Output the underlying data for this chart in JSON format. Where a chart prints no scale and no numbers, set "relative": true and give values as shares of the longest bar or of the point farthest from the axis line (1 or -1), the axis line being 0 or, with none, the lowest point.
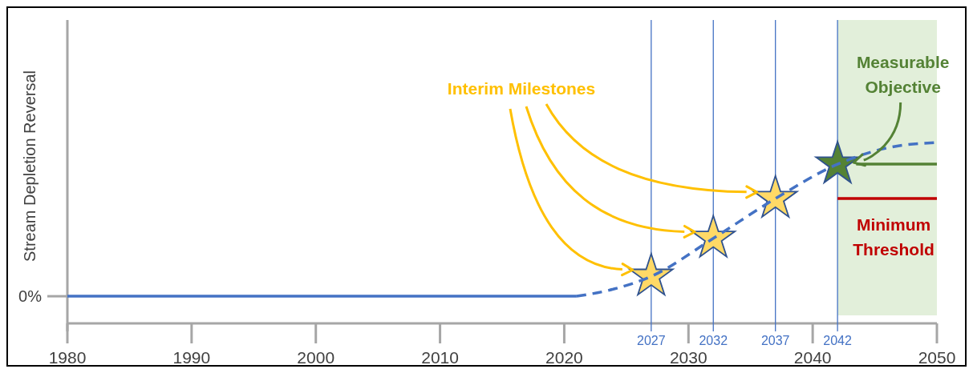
{
  "chart_data": {
    "type": "line",
    "relative": true,
    "ylabel": "Stream Depletion Reversal",
    "xlim": [
      1980,
      2050
    ],
    "xticks": [
      1980,
      1990,
      2000,
      2010,
      2020,
      2030,
      2040,
      2050
    ],
    "grid": false,
    "legend": false,
    "series": [
      {
        "type": "line",
        "color": "#4472c4",
        "line_style": "solid",
        "x": [
          1980,
          2021
        ],
        "values": [
          0.15,
          0.15
        ]
      },
      {
        "type": "line",
        "color": "#4472c4",
        "line_style": "dashed",
        "x": [
          2021,
          2024,
          2027,
          2032,
          2037,
          2042,
          2046,
          2050
        ],
        "values": [
          0.15,
          0.19,
          0.26,
          0.47,
          0.69,
          0.88,
          0.97,
          1
        ]
      },
      {
        "type": "line",
        "name": "Measurable Objective",
        "color": "#548235",
        "line_style": "solid",
        "x": [
          2043.5,
          2050
        ],
        "values": [
          0.88,
          0.88
        ]
      },
      {
        "type": "line",
        "name": "Minimum Threshold",
        "color": "#c00000",
        "line_style": "solid",
        "x": [
          2042,
          2050
        ],
        "values": [
          0.69,
          0.69
        ]
      },
      {
        "type": "scatter",
        "marker": "star",
        "colors": [
          "#ffd966",
          "#ffd966",
          "#ffd966",
          "#548235"
        ],
        "x": [
          2027,
          2032,
          2037,
          2042
        ],
        "values": [
          0.26,
          0.47,
          0.69,
          0.88
        ]
      }
    ],
    "ref_lines": [
      {
        "axis": "x",
        "value": 2027,
        "label": "2027",
        "color": "#4472c4"
      },
      {
        "axis": "x",
        "value": 2032,
        "label": "2032",
        "color": "#4472c4"
      },
      {
        "axis": "x",
        "value": 2037,
        "label": "2037",
        "color": "#4472c4"
      },
      {
        "axis": "x",
        "value": 2042,
        "label": "2042",
        "color": "#4472c4"
      }
    ],
    "bands": [
      {
        "axis": "x",
        "from": 2042,
        "to": 2050,
        "color": "#e2efda"
      }
    ],
    "annotations": [
      {
        "text": "0%",
        "x": 1980,
        "y": 0.15
      },
      "Interim Milestones"
    ]
  }
}
